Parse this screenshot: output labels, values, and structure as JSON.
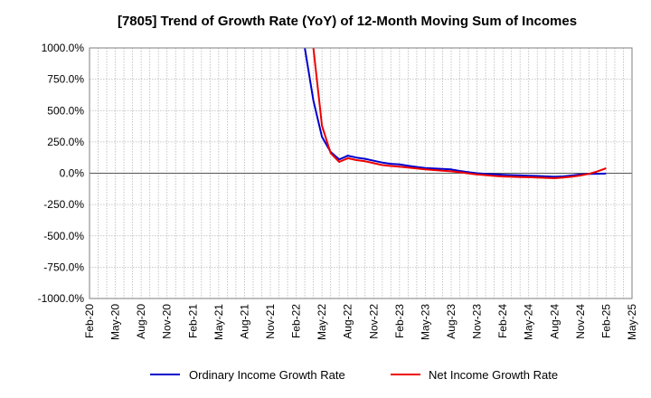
{
  "chart_data": {
    "type": "line",
    "title": "[7805]  Trend of Growth Rate (YoY) of 12-Month Moving Sum of Incomes",
    "xlabel": "",
    "ylabel": "",
    "ylim": [
      -1000,
      1000
    ],
    "yticks": [
      1000,
      750,
      500,
      250,
      0,
      -250,
      -500,
      -750,
      -1000
    ],
    "ytick_labels": [
      "1000.0%",
      "750.0%",
      "500.0%",
      "250.0%",
      "0.0%",
      "-250.0%",
      "-500.0%",
      "-750.0%",
      "-1000.0%"
    ],
    "x_start": "Feb-20",
    "x_end": "May-25",
    "xtick_labels": [
      "Feb-20",
      "May-20",
      "Aug-20",
      "Nov-20",
      "Feb-21",
      "May-21",
      "Aug-21",
      "Nov-21",
      "Feb-22",
      "May-22",
      "Aug-22",
      "Nov-22",
      "Feb-23",
      "May-23",
      "Aug-23",
      "Nov-23",
      "Feb-24",
      "May-24",
      "Aug-24",
      "Nov-24",
      "Feb-25",
      "May-25"
    ],
    "grid": true,
    "legend_position": "bottom",
    "series": [
      {
        "name": "Ordinary Income Growth Rate",
        "color": "#0000cc",
        "points": [
          [
            "Mar-22",
            1000
          ],
          [
            "Apr-22",
            580
          ],
          [
            "May-22",
            290
          ],
          [
            "Jun-22",
            170
          ],
          [
            "Jul-22",
            110
          ],
          [
            "Aug-22",
            140
          ],
          [
            "Sep-22",
            125
          ],
          [
            "Oct-22",
            115
          ],
          [
            "Nov-22",
            100
          ],
          [
            "Dec-22",
            85
          ],
          [
            "Jan-23",
            75
          ],
          [
            "Feb-23",
            70
          ],
          [
            "Mar-23",
            60
          ],
          [
            "Apr-23",
            50
          ],
          [
            "May-23",
            42
          ],
          [
            "Jun-23",
            38
          ],
          [
            "Jul-23",
            35
          ],
          [
            "Aug-23",
            30
          ],
          [
            "Sep-23",
            18
          ],
          [
            "Oct-23",
            8
          ],
          [
            "Nov-23",
            0
          ],
          [
            "Dec-23",
            -5
          ],
          [
            "Jan-24",
            -8
          ],
          [
            "Feb-24",
            -12
          ],
          [
            "Mar-24",
            -15
          ],
          [
            "Apr-24",
            -17
          ],
          [
            "May-24",
            -20
          ],
          [
            "Jun-24",
            -22
          ],
          [
            "Jul-24",
            -25
          ],
          [
            "Aug-24",
            -28
          ],
          [
            "Sep-24",
            -25
          ],
          [
            "Oct-24",
            -18
          ],
          [
            "Nov-24",
            -10
          ],
          [
            "Dec-24",
            -6
          ],
          [
            "Jan-25",
            -4
          ],
          [
            "Feb-25",
            -3
          ]
        ]
      },
      {
        "name": "Net Income Growth Rate",
        "color": "#ee0000",
        "points": [
          [
            "Apr-22",
            1000
          ],
          [
            "May-22",
            380
          ],
          [
            "Jun-22",
            160
          ],
          [
            "Jul-22",
            90
          ],
          [
            "Aug-22",
            120
          ],
          [
            "Sep-22",
            105
          ],
          [
            "Oct-22",
            95
          ],
          [
            "Nov-22",
            80
          ],
          [
            "Dec-22",
            65
          ],
          [
            "Jan-23",
            58
          ],
          [
            "Feb-23",
            52
          ],
          [
            "Mar-23",
            45
          ],
          [
            "Apr-23",
            38
          ],
          [
            "May-23",
            30
          ],
          [
            "Jun-23",
            25
          ],
          [
            "Jul-23",
            20
          ],
          [
            "Aug-23",
            15
          ],
          [
            "Sep-23",
            8
          ],
          [
            "Oct-23",
            -2
          ],
          [
            "Nov-23",
            -10
          ],
          [
            "Dec-23",
            -15
          ],
          [
            "Jan-24",
            -22
          ],
          [
            "Feb-24",
            -26
          ],
          [
            "Mar-24",
            -28
          ],
          [
            "Apr-24",
            -30
          ],
          [
            "May-24",
            -32
          ],
          [
            "Jun-24",
            -34
          ],
          [
            "Jul-24",
            -37
          ],
          [
            "Aug-24",
            -40
          ],
          [
            "Sep-24",
            -35
          ],
          [
            "Oct-24",
            -28
          ],
          [
            "Nov-24",
            -18
          ],
          [
            "Dec-24",
            -5
          ],
          [
            "Jan-25",
            15
          ],
          [
            "Feb-25",
            40
          ]
        ]
      }
    ]
  }
}
